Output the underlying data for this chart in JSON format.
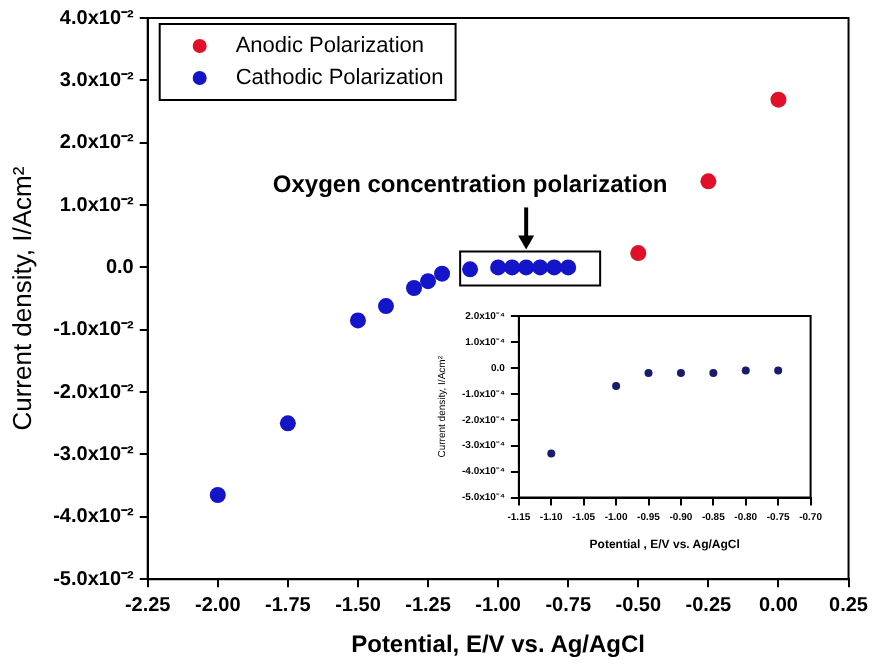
{
  "chart_data": [
    {
      "type": "scatter",
      "xlabel": "Potential, E/V vs. Ag/AgCl",
      "ylabel": "Current density, I/Acm²",
      "marker": "circle",
      "legend": "top left",
      "grid": false,
      "xlim": [
        -2.25,
        0.25
      ],
      "xticks": [
        {
          "value": -2.25,
          "label": "-2.25"
        },
        {
          "value": -2,
          "label": "-2.00"
        },
        {
          "value": -1.75,
          "label": "-1.75"
        },
        {
          "value": -1.5,
          "label": "-1.50"
        },
        {
          "value": -1.25,
          "label": "-1.25"
        },
        {
          "value": -1,
          "label": "-1.00"
        },
        {
          "value": -0.75,
          "label": "-0.75"
        },
        {
          "value": -0.5,
          "label": "-0.50"
        },
        {
          "value": -0.25,
          "label": "-0.25"
        },
        {
          "value": 0,
          "label": "0.00"
        },
        {
          "value": 0.25,
          "label": "0.25"
        }
      ],
      "ylim": [
        -0.05,
        0.04
      ],
      "yticks": [
        {
          "value": -0.05,
          "label": "-5.0x10⁻²"
        },
        {
          "value": -0.04,
          "label": "-4.0x10⁻²"
        },
        {
          "value": -0.03,
          "label": "-3.0x10⁻²"
        },
        {
          "value": -0.02,
          "label": "-2.0x10⁻²"
        },
        {
          "value": -0.01,
          "label": "-1.0x10⁻²"
        },
        {
          "value": 0,
          "label": "0.0"
        },
        {
          "value": 0.01,
          "label": "1.0x10⁻²"
        },
        {
          "value": 0.02,
          "label": "2.0x10⁻²"
        },
        {
          "value": 0.03,
          "label": "3.0x10⁻²"
        },
        {
          "value": 0.04,
          "label": "4.0x10⁻²"
        }
      ],
      "series": [
        {
          "name": "Anodic Polarization",
          "color": "#e0102a",
          "x": [
            -0.5,
            -0.25,
            0
          ],
          "values": [
            0.0023,
            0.0138,
            0.0269
          ]
        },
        {
          "name": "Cathodic Polarization",
          "color": "#1414c8",
          "x": [
            -2,
            -1.75,
            -1.5,
            -1.4,
            -1.3,
            -1.25,
            -1.2,
            -1.1,
            -1.0,
            -0.95,
            -0.9,
            -0.85,
            -0.8,
            -0.75
          ],
          "values": [
            -0.0365,
            -0.025,
            -0.0085,
            -0.0062,
            -0.0033,
            -0.0022,
            -0.001,
            -0.0003,
            0,
            0,
            0,
            0,
            0,
            0
          ]
        }
      ],
      "annotations": [
        {
          "text": "Oxygen concentration polarization",
          "x": -0.9,
          "y": 0
        }
      ]
    },
    {
      "type": "scatter",
      "xlabel": "Potential , E/V vs. Ag/AgCl",
      "ylabel": "Current density, I/Acm²",
      "marker": "circle",
      "grid": false,
      "xlim": [
        -1.15,
        -0.7
      ],
      "xticks": [
        {
          "value": -1.15,
          "label": "-1.15"
        },
        {
          "value": -1.1,
          "label": "-1.10"
        },
        {
          "value": -1.05,
          "label": "-1.05"
        },
        {
          "value": -1,
          "label": "-1.00"
        },
        {
          "value": -0.95,
          "label": "-0.95"
        },
        {
          "value": -0.9,
          "label": "-0.90"
        },
        {
          "value": -0.85,
          "label": "-0.85"
        },
        {
          "value": -0.8,
          "label": "-0.80"
        },
        {
          "value": -0.75,
          "label": "-0.75"
        },
        {
          "value": -0.7,
          "label": "-0.70"
        }
      ],
      "ylim": [
        -0.0005,
        0.0002
      ],
      "yticks": [
        {
          "value": -0.0005,
          "label": "-5.0x10⁻⁴"
        },
        {
          "value": -0.0004,
          "label": "-4.0x10⁻⁴"
        },
        {
          "value": -0.0003,
          "label": "-3.0x10⁻⁴"
        },
        {
          "value": -0.0002,
          "label": "-2.0x10⁻⁴"
        },
        {
          "value": -0.0001,
          "label": "-1.0x10⁻⁴"
        },
        {
          "value": 0,
          "label": "0.0"
        },
        {
          "value": 0.0001,
          "label": "1.0x10⁻⁴"
        },
        {
          "value": 0.0002,
          "label": "2.0x10⁻⁴"
        }
      ],
      "series": [
        {
          "color": "#1a1a6e",
          "x": [
            -1.1,
            -1.0,
            -0.95,
            -0.9,
            -0.85,
            -0.8,
            -0.75
          ],
          "values": [
            -0.00033,
            -7e-05,
            -2e-05,
            -2e-05,
            -2e-05,
            -1e-05,
            -1e-05
          ]
        }
      ]
    }
  ]
}
